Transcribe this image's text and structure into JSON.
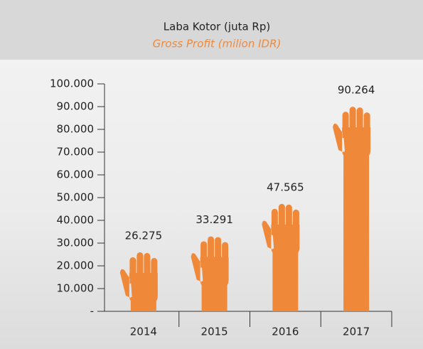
{
  "chart_data": {
    "type": "bar",
    "title": "Laba Kotor (juta Rp)",
    "subtitle": "Gross Profit (milion IDR)",
    "categories": [
      "2014",
      "2015",
      "2016",
      "2017"
    ],
    "values": [
      26275,
      33291,
      47565,
      90264
    ],
    "value_labels": [
      "26.275",
      "33.291",
      "47.565",
      "90.264"
    ],
    "color": "#f0883a",
    "ylim": [
      0,
      100000
    ],
    "yticks": [
      {
        "value": 0,
        "label": "-"
      },
      {
        "value": 10000,
        "label": "10.000"
      },
      {
        "value": 20000,
        "label": "20.000"
      },
      {
        "value": 30000,
        "label": "30.000"
      },
      {
        "value": 40000,
        "label": "40.000"
      },
      {
        "value": 50000,
        "label": "50.000"
      },
      {
        "value": 60000,
        "label": "60.000"
      },
      {
        "value": 70000,
        "label": "70.000"
      },
      {
        "value": 80000,
        "label": "80.000"
      },
      {
        "value": 90000,
        "label": "90.000"
      },
      {
        "value": 100000,
        "label": "100.000"
      }
    ]
  }
}
